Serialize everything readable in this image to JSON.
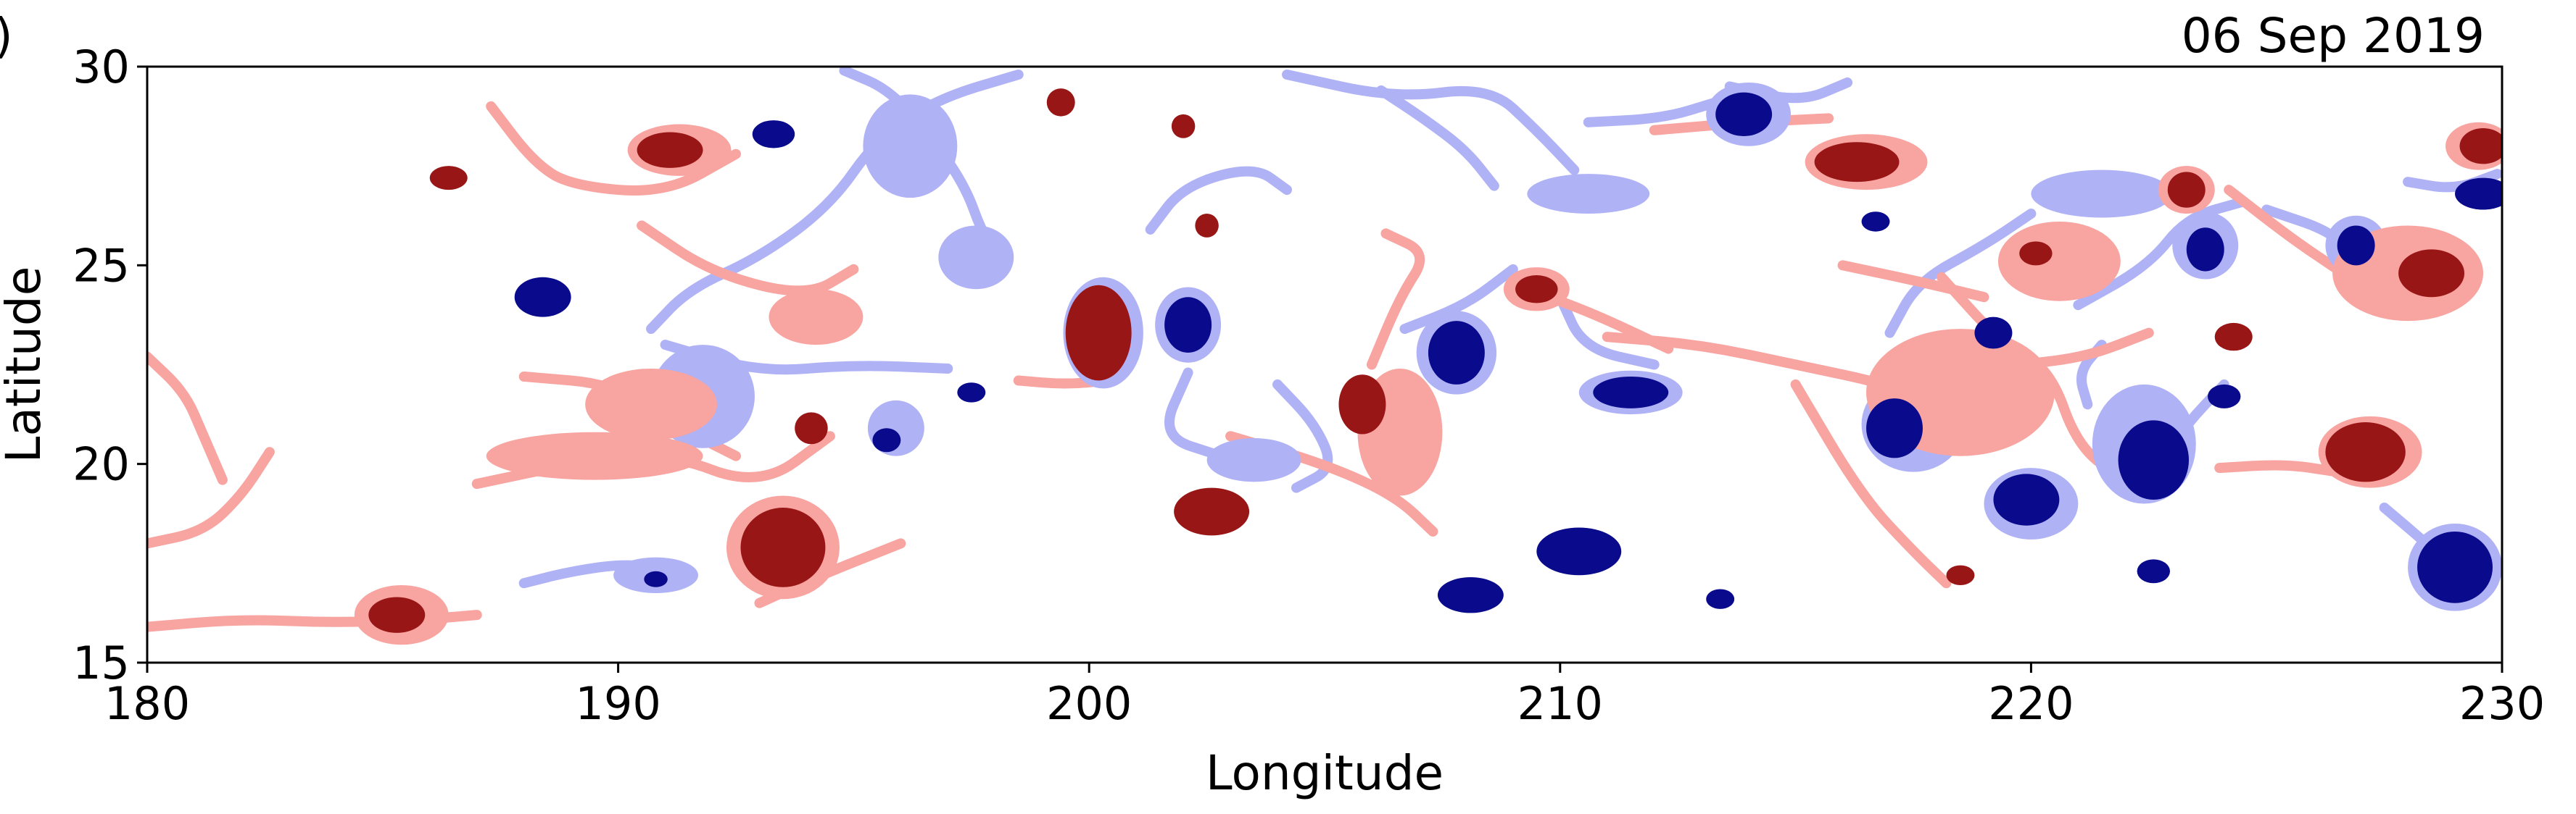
{
  "chart_data": {
    "type": "scatter",
    "date_label": "06 Sep 2019",
    "panel_tag": ")",
    "xlabel": "Longitude",
    "ylabel": "Latitude",
    "xlim": [
      180,
      230
    ],
    "ylim": [
      15,
      30
    ],
    "xticks": [
      180,
      190,
      200,
      210,
      220,
      230
    ],
    "yticks": [
      15,
      20,
      25,
      30
    ],
    "grid": false,
    "colors": {
      "anticyclone_core": "#991616",
      "anticyclone_filament": "#f8a4a0",
      "cyclone_core": "#0a0a8c",
      "cyclone_filament": "#b0b2f6"
    },
    "anticyclone_cores": [
      {
        "lon": 186.4,
        "lat": 27.2,
        "rx": 0.4,
        "ry": 0.3
      },
      {
        "lon": 191.1,
        "lat": 27.9,
        "rx": 0.7,
        "ry": 0.45
      },
      {
        "lon": 199.4,
        "lat": 29.1,
        "rx": 0.3,
        "ry": 0.35
      },
      {
        "lon": 202.0,
        "lat": 28.5,
        "rx": 0.25,
        "ry": 0.3
      },
      {
        "lon": 202.5,
        "lat": 26.0,
        "rx": 0.25,
        "ry": 0.3
      },
      {
        "lon": 200.2,
        "lat": 23.3,
        "rx": 0.7,
        "ry": 1.2
      },
      {
        "lon": 205.8,
        "lat": 21.5,
        "rx": 0.5,
        "ry": 0.75
      },
      {
        "lon": 209.5,
        "lat": 24.4,
        "rx": 0.45,
        "ry": 0.35
      },
      {
        "lon": 202.6,
        "lat": 18.8,
        "rx": 0.8,
        "ry": 0.6
      },
      {
        "lon": 193.5,
        "lat": 17.9,
        "rx": 0.9,
        "ry": 1.0
      },
      {
        "lon": 194.1,
        "lat": 20.9,
        "rx": 0.35,
        "ry": 0.4
      },
      {
        "lon": 185.3,
        "lat": 16.2,
        "rx": 0.6,
        "ry": 0.45
      },
      {
        "lon": 216.3,
        "lat": 27.6,
        "rx": 0.9,
        "ry": 0.5
      },
      {
        "lon": 218.5,
        "lat": 17.2,
        "rx": 0.3,
        "ry": 0.25
      },
      {
        "lon": 220.1,
        "lat": 25.3,
        "rx": 0.35,
        "ry": 0.3
      },
      {
        "lon": 223.3,
        "lat": 26.9,
        "rx": 0.4,
        "ry": 0.45
      },
      {
        "lon": 224.3,
        "lat": 23.2,
        "rx": 0.4,
        "ry": 0.35
      },
      {
        "lon": 227.1,
        "lat": 20.3,
        "rx": 0.85,
        "ry": 0.75
      },
      {
        "lon": 228.5,
        "lat": 24.8,
        "rx": 0.7,
        "ry": 0.6
      },
      {
        "lon": 229.6,
        "lat": 28.0,
        "rx": 0.5,
        "ry": 0.45
      }
    ],
    "cyclone_cores": [
      {
        "lon": 188.4,
        "lat": 24.2,
        "rx": 0.6,
        "ry": 0.5
      },
      {
        "lon": 193.3,
        "lat": 28.3,
        "rx": 0.45,
        "ry": 0.35
      },
      {
        "lon": 197.5,
        "lat": 21.8,
        "rx": 0.3,
        "ry": 0.25
      },
      {
        "lon": 195.7,
        "lat": 20.6,
        "rx": 0.3,
        "ry": 0.3
      },
      {
        "lon": 190.8,
        "lat": 17.1,
        "rx": 0.25,
        "ry": 0.2
      },
      {
        "lon": 202.1,
        "lat": 23.5,
        "rx": 0.5,
        "ry": 0.7
      },
      {
        "lon": 207.8,
        "lat": 22.8,
        "rx": 0.6,
        "ry": 0.8
      },
      {
        "lon": 211.5,
        "lat": 21.8,
        "rx": 0.8,
        "ry": 0.4
      },
      {
        "lon": 210.4,
        "lat": 17.8,
        "rx": 0.9,
        "ry": 0.6
      },
      {
        "lon": 208.1,
        "lat": 16.7,
        "rx": 0.7,
        "ry": 0.45
      },
      {
        "lon": 213.4,
        "lat": 16.6,
        "rx": 0.3,
        "ry": 0.25
      },
      {
        "lon": 213.9,
        "lat": 28.8,
        "rx": 0.6,
        "ry": 0.55
      },
      {
        "lon": 216.7,
        "lat": 26.1,
        "rx": 0.3,
        "ry": 0.25
      },
      {
        "lon": 217.1,
        "lat": 20.9,
        "rx": 0.6,
        "ry": 0.75
      },
      {
        "lon": 219.2,
        "lat": 23.3,
        "rx": 0.4,
        "ry": 0.4
      },
      {
        "lon": 219.9,
        "lat": 19.1,
        "rx": 0.7,
        "ry": 0.65
      },
      {
        "lon": 222.6,
        "lat": 20.1,
        "rx": 0.75,
        "ry": 1.0
      },
      {
        "lon": 222.6,
        "lat": 17.3,
        "rx": 0.35,
        "ry": 0.3
      },
      {
        "lon": 223.7,
        "lat": 25.4,
        "rx": 0.4,
        "ry": 0.55
      },
      {
        "lon": 224.1,
        "lat": 21.7,
        "rx": 0.35,
        "ry": 0.3
      },
      {
        "lon": 226.9,
        "lat": 25.5,
        "rx": 0.4,
        "ry": 0.5
      },
      {
        "lon": 229.0,
        "lat": 17.4,
        "rx": 0.8,
        "ry": 0.9
      },
      {
        "lon": 229.6,
        "lat": 26.8,
        "rx": 0.6,
        "ry": 0.4
      }
    ],
    "anticyclone_halos": [
      {
        "lon": 191.3,
        "lat": 27.9,
        "rx": 1.1,
        "ry": 0.65
      },
      {
        "lon": 193.5,
        "lat": 17.9,
        "rx": 1.2,
        "ry": 1.3
      },
      {
        "lon": 185.4,
        "lat": 16.2,
        "rx": 1.0,
        "ry": 0.75
      },
      {
        "lon": 194.2,
        "lat": 23.7,
        "rx": 1.0,
        "ry": 0.7
      },
      {
        "lon": 209.5,
        "lat": 24.4,
        "rx": 0.7,
        "ry": 0.55
      },
      {
        "lon": 216.5,
        "lat": 27.6,
        "rx": 1.3,
        "ry": 0.7
      },
      {
        "lon": 218.5,
        "lat": 21.8,
        "rx": 2.0,
        "ry": 1.6
      },
      {
        "lon": 220.6,
        "lat": 25.1,
        "rx": 1.3,
        "ry": 1.0
      },
      {
        "lon": 227.2,
        "lat": 20.3,
        "rx": 1.1,
        "ry": 0.9
      },
      {
        "lon": 228.0,
        "lat": 24.8,
        "rx": 1.6,
        "ry": 1.2
      },
      {
        "lon": 190.7,
        "lat": 21.5,
        "rx": 1.4,
        "ry": 0.9
      },
      {
        "lon": 189.5,
        "lat": 20.2,
        "rx": 2.3,
        "ry": 0.6
      },
      {
        "lon": 206.6,
        "lat": 20.8,
        "rx": 0.9,
        "ry": 1.6
      },
      {
        "lon": 223.3,
        "lat": 26.9,
        "rx": 0.6,
        "ry": 0.6
      },
      {
        "lon": 229.5,
        "lat": 28.0,
        "rx": 0.7,
        "ry": 0.6
      }
    ],
    "cyclone_halos": [
      {
        "lon": 191.8,
        "lat": 21.7,
        "rx": 1.1,
        "ry": 1.3
      },
      {
        "lon": 196.2,
        "lat": 28.0,
        "rx": 1.0,
        "ry": 1.3
      },
      {
        "lon": 197.6,
        "lat": 25.2,
        "rx": 0.8,
        "ry": 0.8
      },
      {
        "lon": 195.9,
        "lat": 20.9,
        "rx": 0.6,
        "ry": 0.7
      },
      {
        "lon": 202.1,
        "lat": 23.5,
        "rx": 0.7,
        "ry": 0.95
      },
      {
        "lon": 203.5,
        "lat": 20.1,
        "rx": 1.0,
        "ry": 0.55
      },
      {
        "lon": 207.8,
        "lat": 22.8,
        "rx": 0.85,
        "ry": 1.05
      },
      {
        "lon": 211.5,
        "lat": 21.8,
        "rx": 1.1,
        "ry": 0.55
      },
      {
        "lon": 214.0,
        "lat": 28.8,
        "rx": 0.9,
        "ry": 0.8
      },
      {
        "lon": 217.5,
        "lat": 21.0,
        "rx": 1.1,
        "ry": 1.2
      },
      {
        "lon": 220.0,
        "lat": 19.0,
        "rx": 1.0,
        "ry": 0.9
      },
      {
        "lon": 222.4,
        "lat": 20.5,
        "rx": 1.1,
        "ry": 1.5
      },
      {
        "lon": 223.7,
        "lat": 25.5,
        "rx": 0.7,
        "ry": 0.85
      },
      {
        "lon": 226.9,
        "lat": 25.5,
        "rx": 0.65,
        "ry": 0.75
      },
      {
        "lon": 229.0,
        "lat": 17.4,
        "rx": 1.0,
        "ry": 1.1
      },
      {
        "lon": 221.5,
        "lat": 26.8,
        "rx": 1.5,
        "ry": 0.6
      },
      {
        "lon": 210.6,
        "lat": 26.8,
        "rx": 1.3,
        "ry": 0.5
      },
      {
        "lon": 190.8,
        "lat": 17.2,
        "rx": 0.9,
        "ry": 0.45
      },
      {
        "lon": 200.3,
        "lat": 23.3,
        "rx": 0.85,
        "ry": 1.4
      }
    ],
    "anticyclone_filaments": [
      [
        [
          180.0,
          15.9
        ],
        [
          182.0,
          16.1
        ],
        [
          184.0,
          16.0
        ],
        [
          186.0,
          16.1
        ],
        [
          187.0,
          16.2
        ]
      ],
      [
        [
          180.0,
          18.0
        ],
        [
          181.2,
          18.3
        ],
        [
          182.0,
          19.2
        ],
        [
          182.6,
          20.3
        ]
      ],
      [
        [
          187.3,
          29.0
        ],
        [
          188.2,
          27.6
        ],
        [
          189.0,
          27.0
        ],
        [
          191.0,
          26.8
        ],
        [
          192.5,
          27.8
        ]
      ],
      [
        [
          187.0,
          19.5
        ],
        [
          189.0,
          20.0
        ],
        [
          191.0,
          20.3
        ],
        [
          193.0,
          19.4
        ],
        [
          194.5,
          20.7
        ]
      ],
      [
        [
          188.0,
          22.2
        ],
        [
          190.0,
          22.0
        ],
        [
          191.5,
          20.8
        ],
        [
          192.5,
          20.2
        ]
      ],
      [
        [
          190.5,
          26.0
        ],
        [
          192.0,
          24.8
        ],
        [
          194.0,
          24.2
        ],
        [
          195.0,
          24.9
        ]
      ],
      [
        [
          198.5,
          22.1
        ],
        [
          199.5,
          22.0
        ],
        [
          200.4,
          22.1
        ]
      ],
      [
        [
          196.0,
          18.0
        ],
        [
          194.3,
          17.2
        ],
        [
          193.0,
          16.5
        ]
      ],
      [
        [
          203.0,
          20.7
        ],
        [
          205.0,
          20.0
        ],
        [
          206.5,
          19.2
        ],
        [
          207.3,
          18.3
        ]
      ],
      [
        [
          206.0,
          22.5
        ],
        [
          206.6,
          24.2
        ],
        [
          207.2,
          25.3
        ],
        [
          206.3,
          25.8
        ]
      ],
      [
        [
          215.7,
          28.7
        ],
        [
          214.0,
          28.6
        ],
        [
          212.0,
          28.4
        ]
      ],
      [
        [
          211.0,
          23.2
        ],
        [
          213.0,
          23.0
        ],
        [
          215.0,
          22.5
        ],
        [
          217.0,
          22.0
        ],
        [
          218.2,
          21.4
        ]
      ],
      [
        [
          215.0,
          22.0
        ],
        [
          216.4,
          19.2
        ],
        [
          217.5,
          17.8
        ],
        [
          218.2,
          17.0
        ]
      ],
      [
        [
          218.1,
          24.7
        ],
        [
          219.4,
          23.0
        ],
        [
          220.4,
          22.4
        ],
        [
          221.0,
          20.4
        ],
        [
          222.0,
          19.6
        ]
      ],
      [
        [
          216.0,
          25.0
        ],
        [
          217.6,
          24.6
        ],
        [
          219.0,
          24.2
        ]
      ],
      [
        [
          222.5,
          23.3
        ],
        [
          221.2,
          22.7
        ],
        [
          219.8,
          22.5
        ]
      ],
      [
        [
          224.2,
          26.9
        ],
        [
          225.5,
          25.7
        ],
        [
          226.5,
          24.9
        ]
      ],
      [
        [
          226.5,
          19.8
        ],
        [
          225.4,
          20.0
        ],
        [
          224.0,
          19.9
        ]
      ],
      [
        [
          212.3,
          22.9
        ],
        [
          210.5,
          23.9
        ],
        [
          209.0,
          24.5
        ]
      ],
      [
        [
          180.0,
          22.7
        ],
        [
          180.8,
          21.8
        ],
        [
          181.2,
          20.7
        ],
        [
          181.6,
          19.6
        ]
      ]
    ],
    "cyclone_filaments": [
      [
        [
          198.5,
          29.8
        ],
        [
          196.8,
          29.2
        ],
        [
          195.5,
          28.2
        ],
        [
          194.5,
          26.5
        ],
        [
          193.0,
          25.2
        ],
        [
          191.5,
          24.4
        ],
        [
          190.7,
          23.4
        ]
      ],
      [
        [
          194.8,
          29.9
        ],
        [
          195.8,
          29.4
        ],
        [
          196.8,
          28.0
        ],
        [
          197.4,
          26.9
        ],
        [
          197.7,
          25.9
        ],
        [
          198.1,
          25.1
        ]
      ],
      [
        [
          191.0,
          23.0
        ],
        [
          193.0,
          22.3
        ],
        [
          195.0,
          22.5
        ],
        [
          197.0,
          22.4
        ]
      ],
      [
        [
          188.0,
          17.0
        ],
        [
          189.0,
          17.3
        ],
        [
          190.2,
          17.5
        ],
        [
          191.2,
          17.3
        ]
      ],
      [
        [
          201.3,
          25.9
        ],
        [
          202.0,
          27.0
        ],
        [
          203.5,
          27.5
        ],
        [
          204.2,
          26.9
        ]
      ],
      [
        [
          202.1,
          22.3
        ],
        [
          201.5,
          20.7
        ],
        [
          202.8,
          20.2
        ],
        [
          203.8,
          19.8
        ]
      ],
      [
        [
          204.0,
          22.0
        ],
        [
          204.8,
          21.0
        ],
        [
          205.2,
          19.9
        ],
        [
          204.4,
          19.4
        ]
      ],
      [
        [
          206.7,
          23.4
        ],
        [
          208.0,
          24.0
        ],
        [
          209.0,
          24.9
        ]
      ],
      [
        [
          210.0,
          24.2
        ],
        [
          210.5,
          22.9
        ],
        [
          212.0,
          22.5
        ]
      ],
      [
        [
          204.2,
          29.8
        ],
        [
          206.5,
          29.2
        ],
        [
          208.5,
          29.5
        ],
        [
          209.5,
          28.4
        ],
        [
          210.3,
          27.4
        ]
      ],
      [
        [
          210.6,
          28.6
        ],
        [
          212.2,
          28.7
        ],
        [
          213.3,
          29.1
        ]
      ],
      [
        [
          216.1,
          29.6
        ],
        [
          215.1,
          29.1
        ],
        [
          213.6,
          29.5
        ]
      ],
      [
        [
          220.0,
          26.3
        ],
        [
          219.0,
          25.5
        ],
        [
          217.6,
          24.6
        ],
        [
          217.0,
          23.3
        ]
      ],
      [
        [
          221.0,
          24.0
        ],
        [
          222.5,
          25.0
        ],
        [
          223.3,
          26.2
        ],
        [
          224.5,
          26.6
        ]
      ],
      [
        [
          225.0,
          26.4
        ],
        [
          226.5,
          25.8
        ],
        [
          227.1,
          24.8
        ]
      ],
      [
        [
          224.1,
          22.0
        ],
        [
          223.3,
          21.0
        ],
        [
          222.6,
          19.8
        ]
      ],
      [
        [
          221.5,
          23.0
        ],
        [
          221.0,
          22.3
        ],
        [
          221.2,
          21.5
        ]
      ],
      [
        [
          228.0,
          27.1
        ],
        [
          229.0,
          26.9
        ],
        [
          229.9,
          27.3
        ]
      ],
      [
        [
          227.5,
          18.9
        ],
        [
          228.4,
          18.0
        ],
        [
          229.3,
          17.0
        ]
      ],
      [
        [
          208.6,
          27.0
        ],
        [
          208.0,
          27.9
        ],
        [
          207.1,
          28.7
        ],
        [
          206.2,
          29.4
        ]
      ]
    ]
  }
}
